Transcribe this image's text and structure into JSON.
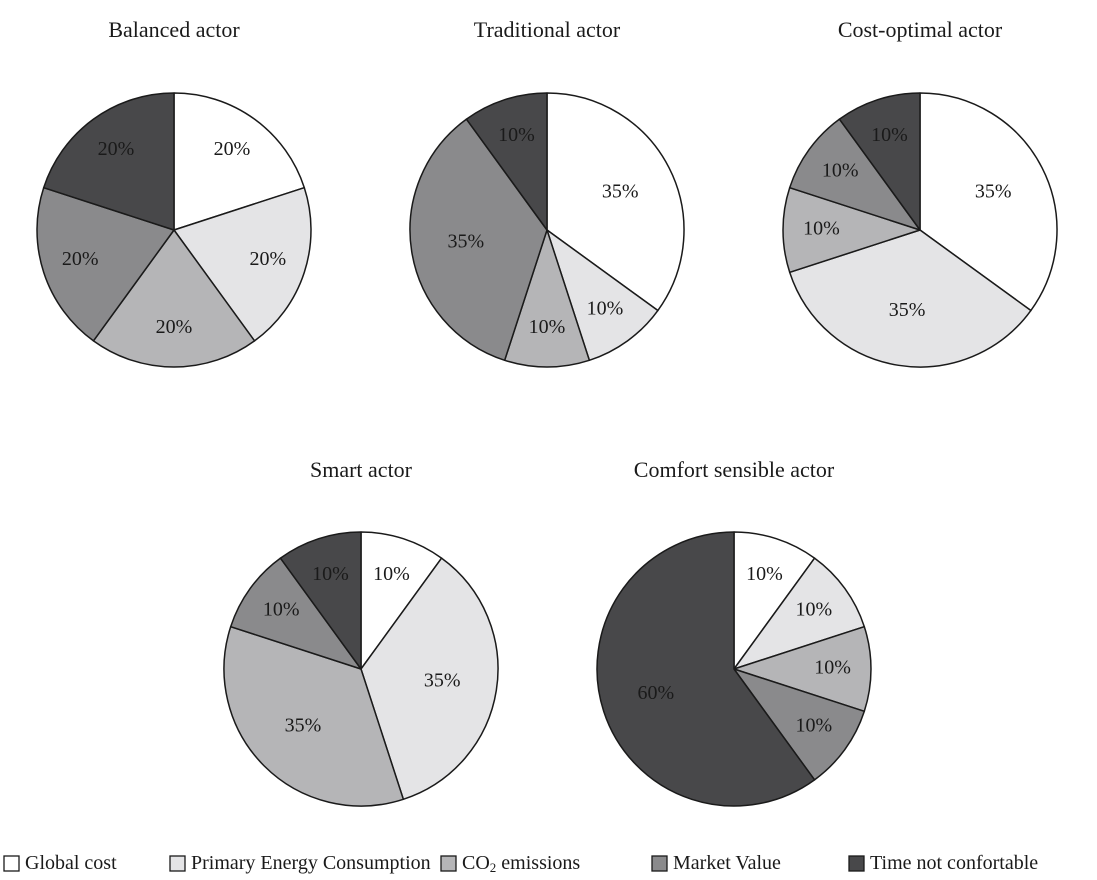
{
  "chart_data": {
    "type": "pie",
    "colors": {
      "Global cost": "#ffffff",
      "Primary Energy Consumption": "#e4e4e6",
      "CO2 emissions": "#b5b5b7",
      "Market Value": "#8a8a8c",
      "Time not confortable": "#48484a"
    },
    "legend": {
      "placement": "bottom",
      "entries": [
        {
          "key": "Global cost",
          "text": "Global cost"
        },
        {
          "key": "Primary Energy Consumption",
          "text": "Primary Energy Consumption"
        },
        {
          "key": "CO2 emissions",
          "text": "CO",
          "subscript": "2",
          "text_after": " emissions"
        },
        {
          "key": "Market Value",
          "text": "Market Value"
        },
        {
          "key": "Time not confortable",
          "text": "Time not confortable"
        }
      ]
    },
    "pies": [
      {
        "title": "Balanced actor",
        "categories": [
          "Global cost",
          "Primary Energy Consumption",
          "CO2 emissions",
          "Market Value",
          "Time not confortable"
        ],
        "values": [
          20,
          20,
          20,
          20,
          20
        ],
        "labels": [
          "20%",
          "20%",
          "20%",
          "20%",
          "20%"
        ]
      },
      {
        "title": "Traditional actor",
        "categories": [
          "Global cost",
          "Primary Energy Consumption",
          "CO2 emissions",
          "Market Value",
          "Time not confortable"
        ],
        "values": [
          35,
          10,
          10,
          35,
          10
        ],
        "labels": [
          "35%",
          "10%",
          "10%",
          "35%",
          "10%"
        ]
      },
      {
        "title": "Cost-optimal actor",
        "categories": [
          "Global cost",
          "Primary Energy Consumption",
          "CO2 emissions",
          "Market Value",
          "Time not confortable"
        ],
        "values": [
          35,
          35,
          10,
          10,
          10
        ],
        "labels": [
          "35%",
          "35%",
          "10%",
          "10%",
          "10%"
        ]
      },
      {
        "title": "Smart actor",
        "categories": [
          "Global cost",
          "Primary Energy Consumption",
          "CO2 emissions",
          "Market Value",
          "Time not confortable"
        ],
        "values": [
          10,
          35,
          35,
          10,
          10
        ],
        "labels": [
          "10%",
          "35%",
          "35%",
          "10%",
          "10%"
        ]
      },
      {
        "title": "Comfort sensible actor",
        "categories": [
          "Global cost",
          "Primary Energy Consumption",
          "CO2 emissions",
          "Market Value",
          "Time not confortable"
        ],
        "values": [
          10,
          10,
          10,
          10,
          60
        ],
        "labels": [
          "10%",
          "10%",
          "10%",
          "10%",
          "60%"
        ]
      }
    ]
  }
}
